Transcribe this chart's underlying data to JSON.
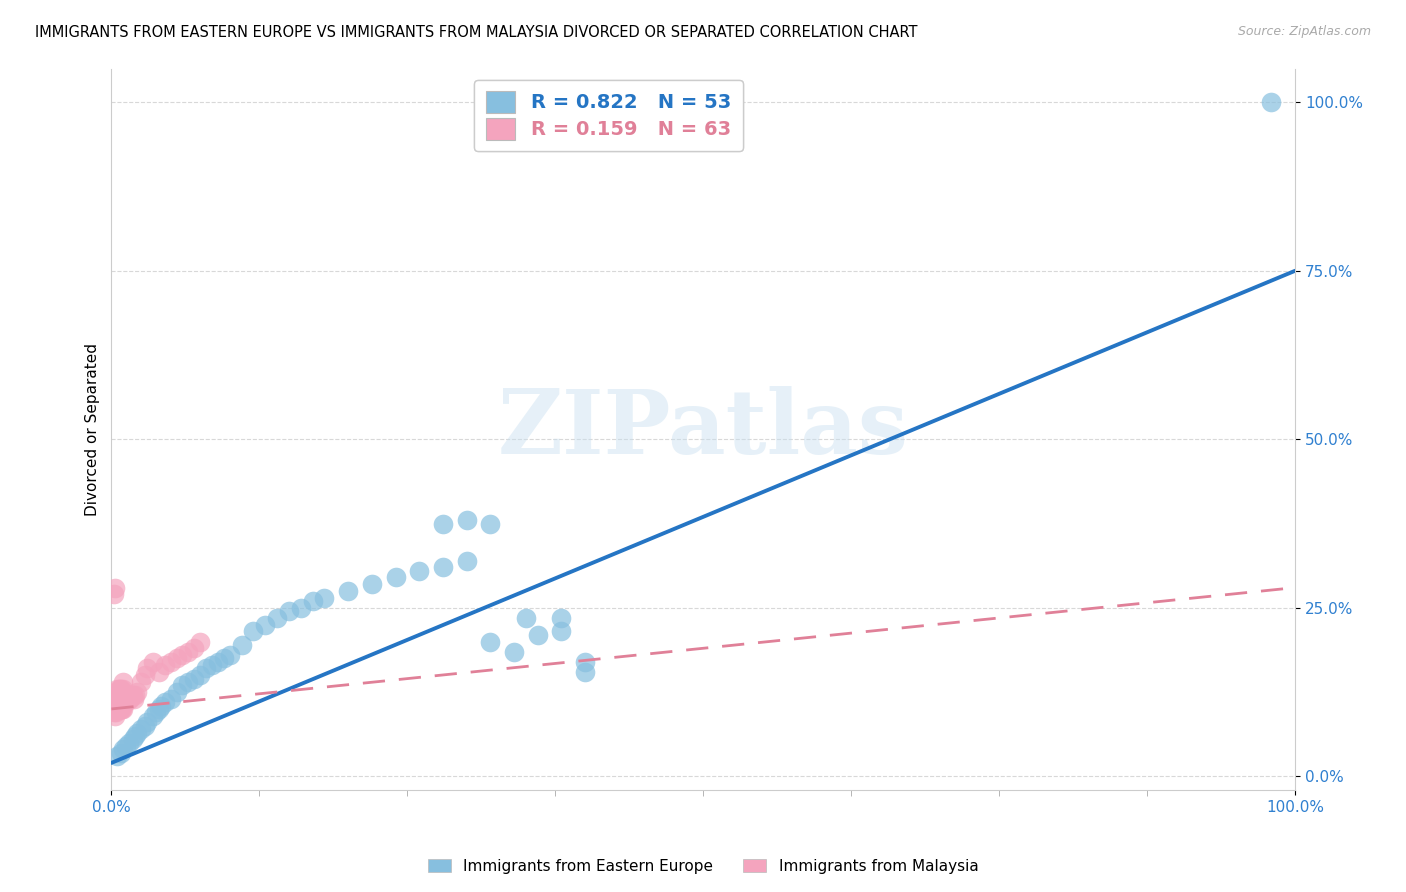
{
  "title": "IMMIGRANTS FROM EASTERN EUROPE VS IMMIGRANTS FROM MALAYSIA DIVORCED OR SEPARATED CORRELATION CHART",
  "source": "Source: ZipAtlas.com",
  "ylabel": "Divorced or Separated",
  "legend_label1": "Immigrants from Eastern Europe",
  "legend_label2": "Immigrants from Malaysia",
  "R1": 0.822,
  "N1": 53,
  "R2": 0.159,
  "N2": 63,
  "color_blue": "#87bfdf",
  "color_pink": "#f4a4be",
  "color_blue_line": "#2575c4",
  "color_pink_line": "#e08098",
  "watermark_text": "ZIPatlas",
  "blue_points_x": [
    0.005,
    0.008,
    0.01,
    0.012,
    0.015,
    0.018,
    0.02,
    0.022,
    0.025,
    0.028,
    0.03,
    0.035,
    0.038,
    0.04,
    0.042,
    0.045,
    0.05,
    0.055,
    0.06,
    0.065,
    0.07,
    0.075,
    0.08,
    0.085,
    0.09,
    0.095,
    0.1,
    0.11,
    0.12,
    0.13,
    0.14,
    0.15,
    0.16,
    0.17,
    0.18,
    0.2,
    0.22,
    0.24,
    0.26,
    0.28,
    0.3,
    0.32,
    0.34,
    0.36,
    0.38,
    0.4,
    0.28,
    0.3,
    0.32,
    0.35,
    0.38,
    0.4,
    0.98
  ],
  "blue_points_y": [
    0.03,
    0.035,
    0.04,
    0.045,
    0.05,
    0.055,
    0.06,
    0.065,
    0.07,
    0.075,
    0.08,
    0.09,
    0.095,
    0.1,
    0.105,
    0.11,
    0.115,
    0.125,
    0.135,
    0.14,
    0.145,
    0.15,
    0.16,
    0.165,
    0.17,
    0.175,
    0.18,
    0.195,
    0.215,
    0.225,
    0.235,
    0.245,
    0.25,
    0.26,
    0.265,
    0.275,
    0.285,
    0.295,
    0.305,
    0.31,
    0.32,
    0.2,
    0.185,
    0.21,
    0.235,
    0.155,
    0.375,
    0.38,
    0.375,
    0.235,
    0.215,
    0.17,
    1.0
  ],
  "pink_points_x": [
    0.001,
    0.001,
    0.002,
    0.002,
    0.002,
    0.003,
    0.003,
    0.003,
    0.004,
    0.004,
    0.004,
    0.004,
    0.005,
    0.005,
    0.005,
    0.005,
    0.006,
    0.006,
    0.006,
    0.006,
    0.007,
    0.007,
    0.007,
    0.007,
    0.008,
    0.008,
    0.008,
    0.008,
    0.009,
    0.009,
    0.01,
    0.01,
    0.01,
    0.01,
    0.01,
    0.011,
    0.011,
    0.012,
    0.012,
    0.013,
    0.014,
    0.015,
    0.015,
    0.016,
    0.017,
    0.018,
    0.019,
    0.02,
    0.022,
    0.025,
    0.028,
    0.03,
    0.035,
    0.04,
    0.045,
    0.05,
    0.055,
    0.06,
    0.065,
    0.07,
    0.075,
    0.002,
    0.003
  ],
  "pink_points_y": [
    0.1,
    0.11,
    0.095,
    0.105,
    0.115,
    0.09,
    0.1,
    0.11,
    0.095,
    0.105,
    0.115,
    0.12,
    0.1,
    0.11,
    0.12,
    0.13,
    0.1,
    0.11,
    0.12,
    0.13,
    0.1,
    0.11,
    0.12,
    0.13,
    0.1,
    0.11,
    0.12,
    0.13,
    0.1,
    0.11,
    0.1,
    0.11,
    0.12,
    0.13,
    0.14,
    0.11,
    0.12,
    0.11,
    0.12,
    0.115,
    0.115,
    0.12,
    0.115,
    0.115,
    0.12,
    0.12,
    0.115,
    0.12,
    0.125,
    0.14,
    0.15,
    0.16,
    0.17,
    0.155,
    0.165,
    0.17,
    0.175,
    0.18,
    0.185,
    0.19,
    0.2,
    0.27,
    0.28
  ],
  "blue_line_x": [
    0.0,
    1.0
  ],
  "blue_line_y": [
    0.02,
    0.75
  ],
  "pink_line_x": [
    0.0,
    1.0
  ],
  "pink_line_y": [
    0.1,
    0.28
  ],
  "xlim": [
    0.0,
    1.0
  ],
  "ylim": [
    -0.02,
    1.05
  ],
  "xtick_positions": [
    0.0,
    1.0
  ],
  "xtick_labels": [
    "0.0%",
    "100.0%"
  ],
  "ytick_positions": [
    0.0,
    0.25,
    0.5,
    0.75,
    1.0
  ],
  "ytick_labels": [
    "0.0%",
    "25.0%",
    "50.0%",
    "75.0%",
    "100.0%"
  ],
  "grid_color": "#d8d8d8",
  "tick_label_color": "#3080d0"
}
